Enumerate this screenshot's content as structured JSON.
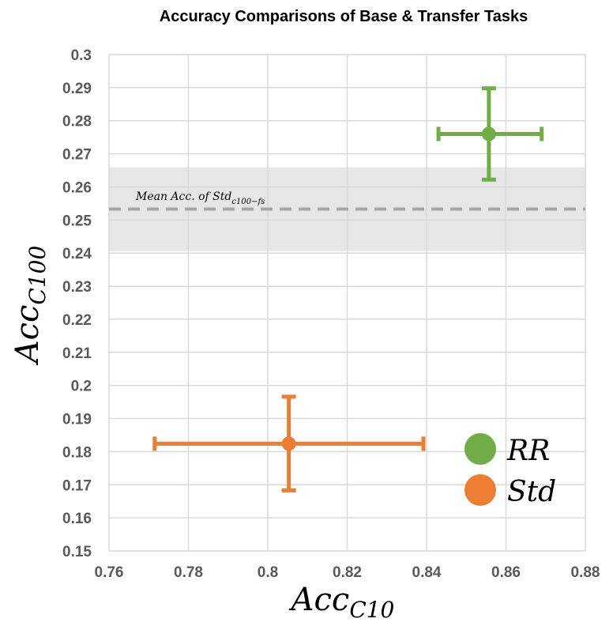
{
  "chart_data": {
    "type": "scatter",
    "title": "Accuracy Comparisons of Base & Transfer Tasks",
    "xlabel": {
      "main": "Acc",
      "sub": "C10"
    },
    "ylabel": {
      "main": "Acc",
      "sub": "C100"
    },
    "xlim": [
      0.76,
      0.88
    ],
    "ylim": [
      0.15,
      0.3
    ],
    "xticks": [
      "0.76",
      "0.78",
      "0.8",
      "0.82",
      "0.84",
      "0.86",
      "0.88"
    ],
    "yticks": [
      "0.3",
      "0.29",
      "0.28",
      "0.27",
      "0.26",
      "0.25",
      "0.24",
      "0.23",
      "0.22",
      "0.21",
      "0.2",
      "0.19",
      "0.18",
      "0.17",
      "0.16",
      "0.15"
    ],
    "grid": true,
    "legend_position": "bottom-right",
    "series": [
      {
        "name": "RR",
        "color": "#70AD47",
        "x": 0.8557,
        "y": 0.276,
        "x_err": [
          0.843,
          0.869
        ],
        "y_err": [
          0.2622,
          0.2898
        ]
      },
      {
        "name": "Std",
        "color": "#ED7D31",
        "x": 0.8053,
        "y": 0.1824,
        "x_err": [
          0.7715,
          0.8392
        ],
        "y_err": [
          0.1683,
          0.1966
        ]
      }
    ],
    "band": {
      "mean": 0.2533,
      "range": [
        0.2406,
        0.2659
      ],
      "label": "Mean Acc. of Std",
      "label_sub": "c100−fs",
      "line_color": "#A6A6A6",
      "fill_color": "#E7E6E6"
    }
  }
}
